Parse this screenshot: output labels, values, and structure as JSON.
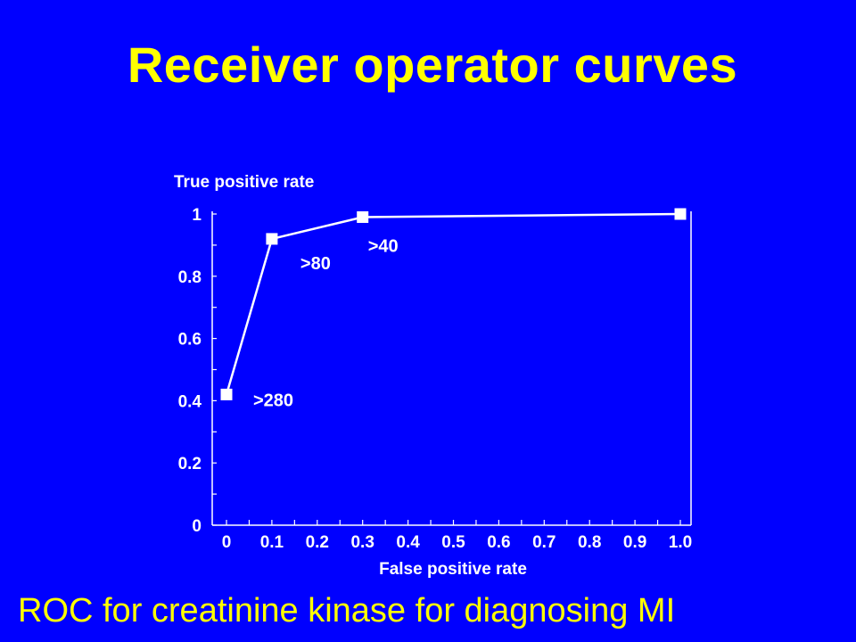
{
  "slide": {
    "title": "Receiver operator curves",
    "caption": "ROC for creatinine kinase for diagnosing MI"
  },
  "colors": {
    "background": "#0000ff",
    "title": "#ffff00",
    "chart_ink": "#ffffff"
  },
  "chart_data": {
    "type": "line",
    "title": "",
    "xlabel": "False positive rate",
    "ylabel": "True positive rate",
    "xlim": [
      0,
      1.0
    ],
    "ylim": [
      0,
      1
    ],
    "x_tick_labels": [
      "0",
      "0.1",
      "0.2",
      "0.3",
      "0.4",
      "0.5",
      "0.6",
      "0.7",
      "0.8",
      "0.9",
      "1.0"
    ],
    "y_tick_labels": [
      "0",
      "0.2",
      "0.4",
      "0.6",
      "0.8",
      "1"
    ],
    "grid": false,
    "series": [
      {
        "marker": "square",
        "points": [
          {
            "x": 0,
            "y": 0.42,
            "label": ">280"
          },
          {
            "x": 0.1,
            "y": 0.92,
            "label": ">80"
          },
          {
            "x": 0.3,
            "y": 0.99,
            "label": ">40"
          },
          {
            "x": 1.0,
            "y": 1.0,
            "label": ""
          }
        ]
      }
    ]
  }
}
